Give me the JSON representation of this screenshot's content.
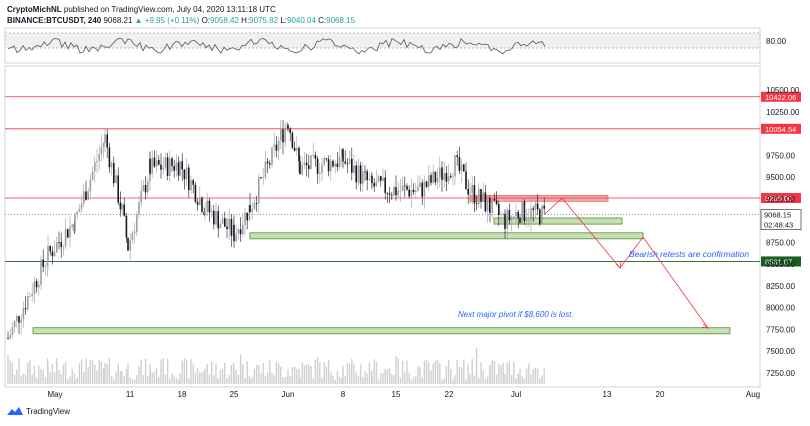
{
  "header": {
    "author": "CryptoMichNL",
    "published_text": "published on TradingView.com, July 04, 2020 13:11:18 UTC",
    "symbol": "BINANCE:BTCUSDT, 240",
    "last": "9068.21",
    "change": "▲ +9.95 (+0.11%)",
    "o_label": "O:",
    "o_val": "9058.42",
    "h_label": "H:",
    "h_val": "9075.82",
    "l_label": "L:",
    "l_val": "9040.04",
    "c_label": "C:",
    "c_val": "9068.15"
  },
  "footer": {
    "brand": "TradingView"
  },
  "indicator": {
    "level_label": "80.00"
  },
  "price_axis": {
    "ticks": [
      "10500.00",
      "10250.00",
      "9750.00",
      "9500.00",
      "9250.00",
      "8750.00",
      "8500.00",
      "8250.00",
      "8000.00",
      "7750.00",
      "7500.00",
      "7250.00"
    ],
    "tick_values": [
      10500,
      10250,
      9750,
      9500,
      9250,
      8750,
      8500,
      8250,
      8000,
      7750,
      7500,
      7250
    ]
  },
  "levels": [
    {
      "label": "10422.06",
      "value": 10422.06,
      "color": "#f23645"
    },
    {
      "label": "10054.54",
      "value": 10054.54,
      "color": "#f23645"
    },
    {
      "label": "9260.00",
      "value": 9260,
      "color": "#f23645"
    },
    {
      "label": "8531.07",
      "value": 8531.07,
      "color": "#1b5e20"
    }
  ],
  "current_price": {
    "label": "9068.15",
    "value": 9068.15,
    "timer": "02:48:43"
  },
  "time_axis": [
    "May",
    "11",
    "18",
    "25",
    "Jun",
    "8",
    "15",
    "22",
    "Jul",
    "13",
    "20",
    "Aug"
  ],
  "annotations": {
    "bearish": "Bearish retests are confirmation",
    "pivot": "Next major pivot if $8,600 is lost."
  },
  "zones": [
    {
      "type": "resistance",
      "from": 9230,
      "to": 9290,
      "color": "#f4a6a6"
    },
    {
      "type": "support",
      "from": 8960,
      "to": 9030,
      "color": "#c7e0b5"
    },
    {
      "type": "support",
      "from": 8800,
      "to": 8860,
      "color": "#c7e0b5"
    },
    {
      "type": "support",
      "from": 7700,
      "to": 7770,
      "color": "#c7e0b5"
    }
  ],
  "chart_data": {
    "type": "candlestick",
    "symbol": "BINANCE:BTCUSDT",
    "timeframe": "240",
    "x": [
      "Apr 27",
      "May 1",
      "May 5",
      "May 8",
      "May 10",
      "May 11",
      "May 14",
      "May 18",
      "May 21",
      "May 25",
      "May 27",
      "Jun 1",
      "Jun 2",
      "Jun 8",
      "Jun 11",
      "Jun 15",
      "Jun 18",
      "Jun 22",
      "Jun 23",
      "Jun 25",
      "Jun 27",
      "Jul 1",
      "Jul 4"
    ],
    "close": [
      7650,
      8600,
      9000,
      9950,
      9100,
      8700,
      9600,
      9650,
      9150,
      8850,
      9150,
      10150,
      9600,
      9700,
      9400,
      9350,
      9350,
      9650,
      9350,
      9150,
      9000,
      9100,
      9068
    ],
    "ylim": [
      7150,
      10600
    ],
    "current": 9068.15,
    "colors": {
      "up": "#26a69a",
      "down": "#131722",
      "line": "#f23645"
    }
  }
}
